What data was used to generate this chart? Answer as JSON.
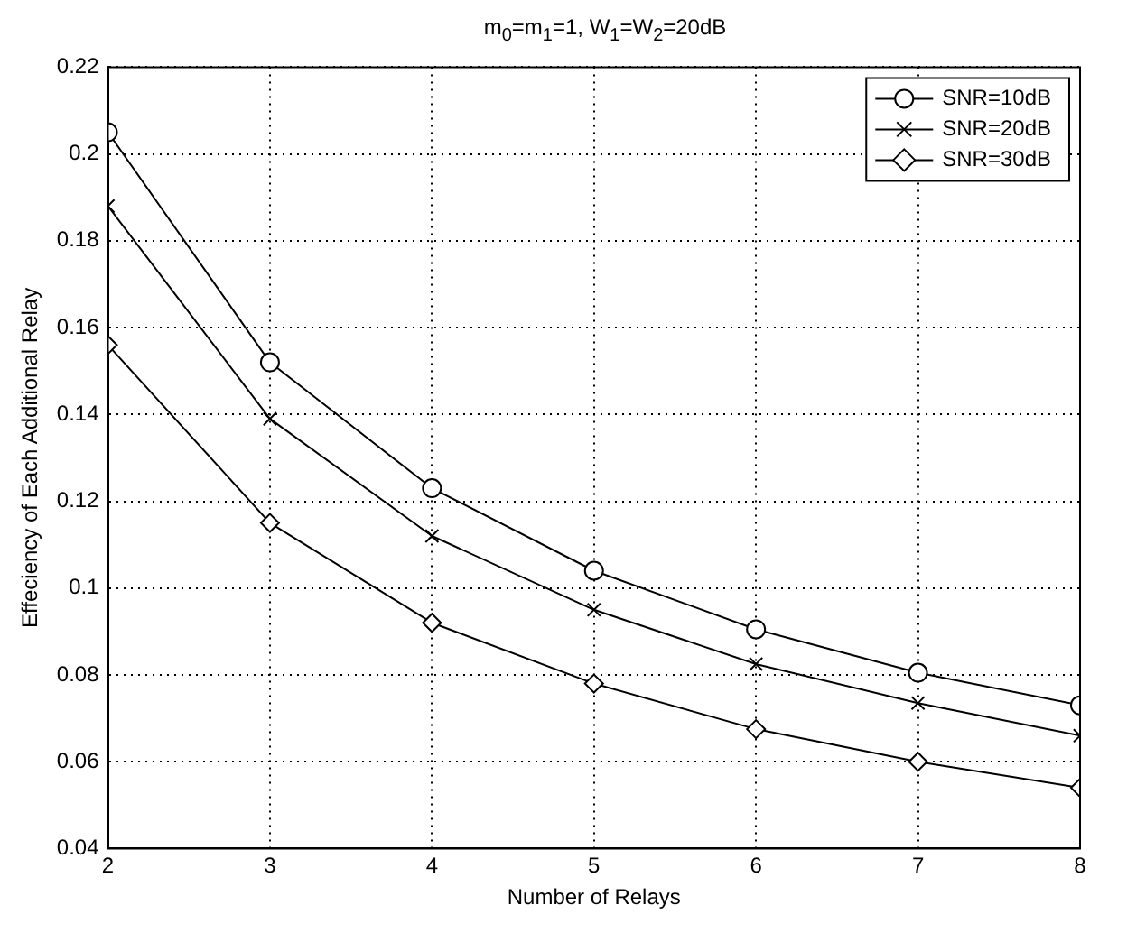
{
  "chart_data": {
    "type": "line",
    "title": "m$_{0}$=m$_{1}$=1, W$_{1}$=W$_{2}$=20dB",
    "xlabel": "Number of Relays",
    "ylabel": "Effeciency of Each Additional Relay",
    "x": [
      2,
      3,
      4,
      5,
      6,
      7,
      8
    ],
    "series": [
      {
        "name": "SNR=10dB",
        "color": "#000000",
        "marker": "circle",
        "values": [
          0.205,
          0.152,
          0.123,
          0.104,
          0.0905,
          0.0805,
          0.073
        ]
      },
      {
        "name": "SNR=20dB",
        "color": "#000000",
        "marker": "cross",
        "values": [
          0.188,
          0.139,
          0.112,
          0.095,
          0.0825,
          0.0735,
          0.066
        ]
      },
      {
        "name": "SNR=30dB",
        "color": "#000000",
        "marker": "diamond",
        "values": [
          0.156,
          0.115,
          0.092,
          0.078,
          0.0675,
          0.06,
          0.054
        ]
      }
    ],
    "xlim": [
      2,
      8
    ],
    "xticks": [
      2,
      3,
      4,
      5,
      6,
      7,
      8
    ],
    "ylim": [
      0.04,
      0.22
    ],
    "yticks": [
      0.04,
      0.06,
      0.08,
      0.1,
      0.12,
      0.14,
      0.16,
      0.18,
      0.2,
      0.22
    ],
    "grid": true,
    "legend": "top right",
    "line_style": "solid"
  }
}
